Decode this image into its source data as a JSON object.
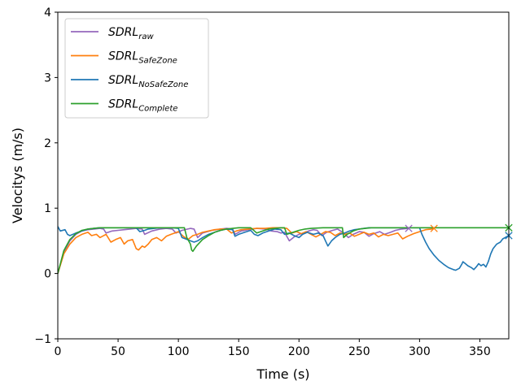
{
  "chart_data": {
    "type": "line",
    "xlabel": "Time (s)",
    "ylabel": "Velocitys (m/s)",
    "xlim": [
      0,
      374
    ],
    "ylim": [
      -1,
      4
    ],
    "xticks": [
      "0",
      "50",
      "100",
      "150",
      "200",
      "250",
      "300",
      "350"
    ],
    "yticks": [
      "−1",
      "0",
      "1",
      "2",
      "3",
      "4"
    ],
    "grid": false,
    "legend_position": "top-left",
    "series": [
      {
        "name": "SDRL_raw",
        "name_base": "SDRL",
        "name_sub": "raw",
        "color": "#9467bd",
        "end_marker": "x",
        "points": [
          [
            0,
            0
          ],
          [
            5,
            0.32
          ],
          [
            10,
            0.5
          ],
          [
            15,
            0.6
          ],
          [
            20,
            0.65
          ],
          [
            25,
            0.67
          ],
          [
            30,
            0.68
          ],
          [
            35,
            0.69
          ],
          [
            38,
            0.68
          ],
          [
            40,
            0.62
          ],
          [
            45,
            0.65
          ],
          [
            50,
            0.66
          ],
          [
            55,
            0.67
          ],
          [
            60,
            0.68
          ],
          [
            65,
            0.69
          ],
          [
            70,
            0.68
          ],
          [
            72,
            0.6
          ],
          [
            78,
            0.65
          ],
          [
            85,
            0.68
          ],
          [
            90,
            0.69
          ],
          [
            95,
            0.68
          ],
          [
            98,
            0.62
          ],
          [
            103,
            0.66
          ],
          [
            110,
            0.69
          ],
          [
            113,
            0.68
          ],
          [
            116,
            0.55
          ],
          [
            120,
            0.62
          ],
          [
            128,
            0.66
          ],
          [
            135,
            0.68
          ],
          [
            140,
            0.69
          ],
          [
            145,
            0.68
          ],
          [
            147,
            0.6
          ],
          [
            152,
            0.65
          ],
          [
            158,
            0.67
          ],
          [
            165,
            0.69
          ],
          [
            172,
            0.68
          ],
          [
            177,
            0.65
          ],
          [
            182,
            0.64
          ],
          [
            185,
            0.62
          ],
          [
            188,
            0.63
          ],
          [
            192,
            0.5
          ],
          [
            196,
            0.56
          ],
          [
            200,
            0.6
          ],
          [
            204,
            0.62
          ],
          [
            208,
            0.65
          ],
          [
            212,
            0.67
          ],
          [
            215,
            0.66
          ],
          [
            219,
            0.58
          ],
          [
            223,
            0.63
          ],
          [
            228,
            0.66
          ],
          [
            232,
            0.68
          ],
          [
            237,
            0.62
          ],
          [
            241,
            0.55
          ],
          [
            245,
            0.6
          ],
          [
            250,
            0.64
          ],
          [
            254,
            0.63
          ],
          [
            258,
            0.57
          ],
          [
            262,
            0.61
          ],
          [
            267,
            0.64
          ],
          [
            271,
            0.6
          ],
          [
            276,
            0.63
          ],
          [
            280,
            0.66
          ],
          [
            285,
            0.68
          ],
          [
            291,
            0.69
          ]
        ]
      },
      {
        "name": "SDRL_SafeZone",
        "name_base": "SDRL",
        "name_sub": "SafeZone",
        "color": "#ff7f0e",
        "end_marker": "x",
        "points": [
          [
            0,
            0
          ],
          [
            5,
            0.3
          ],
          [
            10,
            0.45
          ],
          [
            15,
            0.55
          ],
          [
            20,
            0.6
          ],
          [
            25,
            0.63
          ],
          [
            28,
            0.58
          ],
          [
            32,
            0.6
          ],
          [
            35,
            0.55
          ],
          [
            40,
            0.6
          ],
          [
            44,
            0.48
          ],
          [
            48,
            0.52
          ],
          [
            52,
            0.55
          ],
          [
            55,
            0.45
          ],
          [
            58,
            0.5
          ],
          [
            62,
            0.52
          ],
          [
            65,
            0.38
          ],
          [
            67,
            0.36
          ],
          [
            70,
            0.42
          ],
          [
            72,
            0.4
          ],
          [
            75,
            0.45
          ],
          [
            78,
            0.52
          ],
          [
            82,
            0.55
          ],
          [
            86,
            0.5
          ],
          [
            90,
            0.57
          ],
          [
            94,
            0.6
          ],
          [
            97,
            0.62
          ],
          [
            100,
            0.64
          ],
          [
            104,
            0.57
          ],
          [
            108,
            0.52
          ],
          [
            112,
            0.58
          ],
          [
            116,
            0.6
          ],
          [
            120,
            0.63
          ],
          [
            125,
            0.65
          ],
          [
            130,
            0.67
          ],
          [
            135,
            0.68
          ],
          [
            140,
            0.68
          ],
          [
            144,
            0.62
          ],
          [
            148,
            0.65
          ],
          [
            152,
            0.67
          ],
          [
            158,
            0.68
          ],
          [
            165,
            0.69
          ],
          [
            172,
            0.69
          ],
          [
            178,
            0.7
          ],
          [
            185,
            0.7
          ],
          [
            190,
            0.69
          ],
          [
            194,
            0.62
          ],
          [
            198,
            0.64
          ],
          [
            202,
            0.61
          ],
          [
            206,
            0.64
          ],
          [
            210,
            0.6
          ],
          [
            214,
            0.56
          ],
          [
            218,
            0.6
          ],
          [
            222,
            0.64
          ],
          [
            226,
            0.63
          ],
          [
            230,
            0.58
          ],
          [
            234,
            0.62
          ],
          [
            238,
            0.6
          ],
          [
            242,
            0.62
          ],
          [
            246,
            0.57
          ],
          [
            250,
            0.6
          ],
          [
            254,
            0.63
          ],
          [
            258,
            0.6
          ],
          [
            262,
            0.62
          ],
          [
            266,
            0.56
          ],
          [
            270,
            0.6
          ],
          [
            274,
            0.58
          ],
          [
            278,
            0.6
          ],
          [
            282,
            0.62
          ],
          [
            286,
            0.53
          ],
          [
            290,
            0.57
          ],
          [
            295,
            0.61
          ],
          [
            300,
            0.64
          ],
          [
            305,
            0.67
          ],
          [
            310,
            0.68
          ],
          [
            312,
            0.69
          ]
        ]
      },
      {
        "name": "SDRL_NoSafeZone",
        "name_base": "SDRL",
        "name_sub": "NoSafeZone",
        "color": "#1f77b4",
        "end_marker": "x",
        "points": [
          [
            0,
            0.72
          ],
          [
            2,
            0.65
          ],
          [
            6,
            0.67
          ],
          [
            8,
            0.6
          ],
          [
            10,
            0.58
          ],
          [
            15,
            0.62
          ],
          [
            20,
            0.65
          ],
          [
            25,
            0.68
          ],
          [
            30,
            0.69
          ],
          [
            35,
            0.7
          ],
          [
            40,
            0.7
          ],
          [
            45,
            0.7
          ],
          [
            50,
            0.7
          ],
          [
            55,
            0.7
          ],
          [
            60,
            0.7
          ],
          [
            65,
            0.7
          ],
          [
            68,
            0.64
          ],
          [
            72,
            0.66
          ],
          [
            75,
            0.68
          ],
          [
            80,
            0.69
          ],
          [
            85,
            0.7
          ],
          [
            90,
            0.7
          ],
          [
            95,
            0.7
          ],
          [
            100,
            0.69
          ],
          [
            103,
            0.55
          ],
          [
            106,
            0.53
          ],
          [
            110,
            0.5
          ],
          [
            113,
            0.48
          ],
          [
            116,
            0.5
          ],
          [
            120,
            0.55
          ],
          [
            125,
            0.6
          ],
          [
            130,
            0.63
          ],
          [
            135,
            0.66
          ],
          [
            140,
            0.68
          ],
          [
            145,
            0.67
          ],
          [
            147,
            0.57
          ],
          [
            150,
            0.6
          ],
          [
            155,
            0.63
          ],
          [
            160,
            0.66
          ],
          [
            163,
            0.6
          ],
          [
            166,
            0.58
          ],
          [
            170,
            0.62
          ],
          [
            175,
            0.65
          ],
          [
            180,
            0.68
          ],
          [
            185,
            0.67
          ],
          [
            188,
            0.6
          ],
          [
            192,
            0.62
          ],
          [
            196,
            0.58
          ],
          [
            200,
            0.55
          ],
          [
            203,
            0.6
          ],
          [
            207,
            0.63
          ],
          [
            212,
            0.6
          ],
          [
            216,
            0.62
          ],
          [
            220,
            0.58
          ],
          [
            222,
            0.5
          ],
          [
            224,
            0.42
          ],
          [
            227,
            0.5
          ],
          [
            230,
            0.55
          ],
          [
            234,
            0.6
          ],
          [
            238,
            0.62
          ],
          [
            242,
            0.65
          ],
          [
            246,
            0.67
          ],
          [
            250,
            0.68
          ],
          [
            254,
            0.69
          ],
          [
            258,
            0.7
          ],
          [
            262,
            0.7
          ],
          [
            266,
            0.7
          ],
          [
            270,
            0.7
          ],
          [
            275,
            0.7
          ],
          [
            280,
            0.7
          ],
          [
            285,
            0.7
          ],
          [
            290,
            0.7
          ],
          [
            295,
            0.7
          ],
          [
            300,
            0.7
          ],
          [
            302,
            0.6
          ],
          [
            305,
            0.48
          ],
          [
            308,
            0.38
          ],
          [
            312,
            0.28
          ],
          [
            316,
            0.2
          ],
          [
            320,
            0.14
          ],
          [
            324,
            0.09
          ],
          [
            328,
            0.06
          ],
          [
            330,
            0.05
          ],
          [
            333,
            0.08
          ],
          [
            335,
            0.14
          ],
          [
            336,
            0.18
          ],
          [
            338,
            0.15
          ],
          [
            340,
            0.12
          ],
          [
            343,
            0.09
          ],
          [
            345,
            0.06
          ],
          [
            347,
            0.1
          ],
          [
            349,
            0.15
          ],
          [
            351,
            0.12
          ],
          [
            353,
            0.14
          ],
          [
            355,
            0.1
          ],
          [
            357,
            0.18
          ],
          [
            359,
            0.3
          ],
          [
            361,
            0.38
          ],
          [
            364,
            0.45
          ],
          [
            367,
            0.48
          ],
          [
            369,
            0.53
          ],
          [
            372,
            0.56
          ],
          [
            374,
            0.58
          ]
        ]
      },
      {
        "name": "SDRL_Complete",
        "name_base": "SDRL",
        "name_sub": "Complete",
        "color": "#2ca02c",
        "end_marker": "x",
        "points": [
          [
            0,
            0
          ],
          [
            5,
            0.35
          ],
          [
            10,
            0.52
          ],
          [
            15,
            0.61
          ],
          [
            20,
            0.66
          ],
          [
            25,
            0.68
          ],
          [
            30,
            0.69
          ],
          [
            35,
            0.7
          ],
          [
            40,
            0.7
          ],
          [
            50,
            0.7
          ],
          [
            60,
            0.7
          ],
          [
            70,
            0.7
          ],
          [
            80,
            0.7
          ],
          [
            90,
            0.7
          ],
          [
            100,
            0.7
          ],
          [
            105,
            0.7
          ],
          [
            107,
            0.55
          ],
          [
            110,
            0.45
          ],
          [
            111,
            0.36
          ],
          [
            112,
            0.34
          ],
          [
            115,
            0.42
          ],
          [
            120,
            0.52
          ],
          [
            125,
            0.58
          ],
          [
            130,
            0.63
          ],
          [
            135,
            0.66
          ],
          [
            140,
            0.68
          ],
          [
            145,
            0.69
          ],
          [
            150,
            0.7
          ],
          [
            155,
            0.7
          ],
          [
            160,
            0.7
          ],
          [
            165,
            0.62
          ],
          [
            170,
            0.65
          ],
          [
            175,
            0.68
          ],
          [
            180,
            0.69
          ],
          [
            185,
            0.7
          ],
          [
            188,
            0.7
          ],
          [
            190,
            0.6
          ],
          [
            195,
            0.63
          ],
          [
            200,
            0.66
          ],
          [
            205,
            0.68
          ],
          [
            210,
            0.69
          ],
          [
            220,
            0.7
          ],
          [
            230,
            0.7
          ],
          [
            236,
            0.7
          ],
          [
            237,
            0.55
          ],
          [
            240,
            0.6
          ],
          [
            245,
            0.65
          ],
          [
            250,
            0.68
          ],
          [
            255,
            0.69
          ],
          [
            260,
            0.7
          ],
          [
            270,
            0.7
          ],
          [
            280,
            0.7
          ],
          [
            290,
            0.7
          ],
          [
            300,
            0.7
          ],
          [
            320,
            0.7
          ],
          [
            340,
            0.7
          ],
          [
            360,
            0.7
          ],
          [
            374,
            0.7
          ]
        ]
      }
    ]
  }
}
